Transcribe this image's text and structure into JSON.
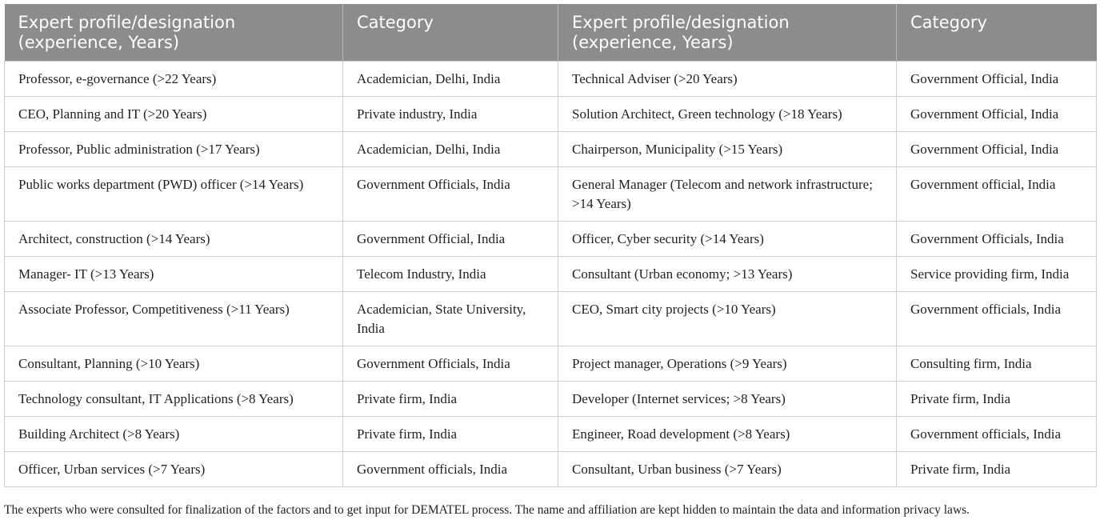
{
  "table": {
    "header": [
      "Expert profile/designation (experience, Years)",
      "Category",
      "Expert profile/designation (experience, Years)",
      "Category"
    ],
    "rows": [
      [
        "Professor, e-governance (>22 Years)",
        "Academician, Delhi, India",
        "Technical Adviser (>20 Years)",
        "Government Official, India"
      ],
      [
        "CEO, Planning and IT (>20 Years)",
        "Private industry, India",
        "Solution Architect, Green technology (>18 Years)",
        "Government Official, India"
      ],
      [
        "Professor, Public administration (>17 Years)",
        "Academician, Delhi, India",
        "Chairperson, Municipality (>15 Years)",
        "Government Official, India"
      ],
      [
        "Public works department (PWD) officer (>14 Years)",
        "Government Officials, India",
        "General Manager (Telecom and network infrastructure; >14 Years)",
        "Government official, India"
      ],
      [
        "Architect, construction (>14 Years)",
        "Government Official, India",
        "Officer, Cyber security (>14 Years)",
        "Government Officials, India"
      ],
      [
        "Manager- IT (>13 Years)",
        "Telecom Industry, India",
        "Consultant (Urban economy; >13 Years)",
        "Service providing firm, India"
      ],
      [
        "Associate Professor, Competitiveness (>11 Years)",
        "Academician, State University, India",
        "CEO, Smart city projects (>10 Years)",
        "Government officials, India"
      ],
      [
        "Consultant, Planning (>10 Years)",
        "Government Officials, India",
        "Project manager, Operations (>9 Years)",
        "Consulting firm, India"
      ],
      [
        "Technology consultant, IT Applications (>8 Years)",
        "Private firm, India",
        "Developer (Internet services; >8 Years)",
        "Private firm, India"
      ],
      [
        "Building Architect (>8 Years)",
        "Private firm, India",
        "Engineer, Road development (>8 Years)",
        "Government officials, India"
      ],
      [
        "Officer, Urban services (>7 Years)",
        "Government officials, India",
        "Consultant, Urban business (>7 Years)",
        "Private firm, India"
      ]
    ],
    "footnote": "The experts who were consulted for finalization of the factors and to get input for DEMATEL process. The name and affiliation are kept hidden to maintain the data and information privacy laws."
  }
}
